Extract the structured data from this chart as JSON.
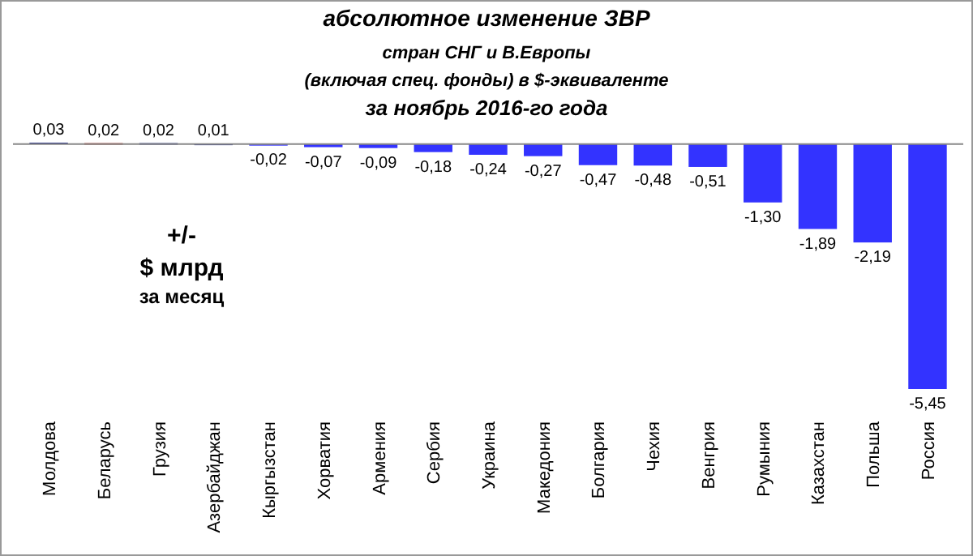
{
  "chart_data": {
    "type": "bar",
    "title": "абсолютное изменение  ЗВР\nстран СНГ и В.Европы\n(включая  спец. фонды) в $-эквиваленте\nза ноябрь 2016-го года",
    "categories": [
      "Молдова",
      "Беларусь",
      "Грузия",
      "Азербайджан",
      "Кыргызстан",
      "Хорватия",
      "Армения",
      "Сербия",
      "Украина",
      "Македония",
      "Болгария",
      "Чехия",
      "Венгрия",
      "Румыния",
      "Казахстан",
      "Польша",
      "Россия"
    ],
    "values": [
      0.03,
      0.02,
      0.02,
      0.01,
      -0.02,
      -0.07,
      -0.09,
      -0.18,
      -0.24,
      -0.27,
      -0.47,
      -0.48,
      -0.51,
      -1.3,
      -1.89,
      -2.19,
      -5.45
    ],
    "value_labels": [
      "0,03",
      "0,02",
      "0,02",
      "0,01",
      "-0,02",
      "-0,07",
      "-0,09",
      "-0,18",
      "-0,24",
      "-0,27",
      "-0,47",
      "-0,48",
      "-0,51",
      "-1,30",
      "-1,89",
      "-2,19",
      "-5,45"
    ],
    "colors": [
      "#1f2a8c",
      "#c0392b",
      "#1f2a8c",
      "#1f2a8c",
      "#3333ff",
      "#3333ff",
      "#3333ff",
      "#3333ff",
      "#3333ff",
      "#3333ff",
      "#3333ff",
      "#3333ff",
      "#3333ff",
      "#3333ff",
      "#3333ff",
      "#3333ff",
      "#3333ff"
    ],
    "annotations": [
      "+/-\n$ млрд\nза месяц"
    ],
    "grid": false
  }
}
